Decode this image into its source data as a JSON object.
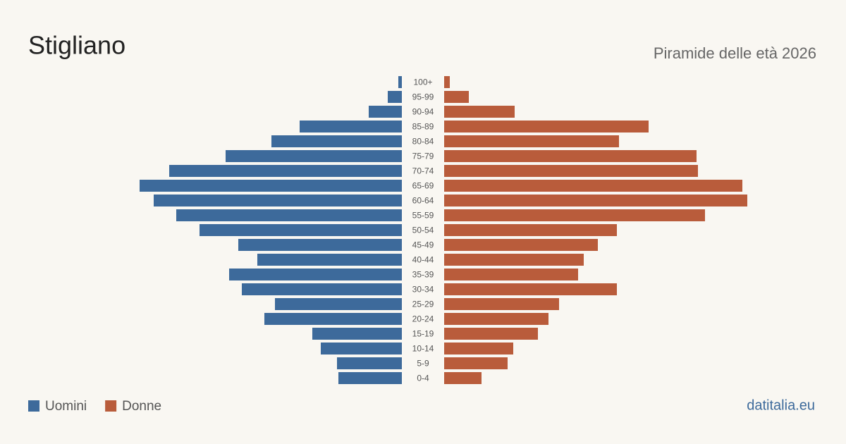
{
  "chart_data": {
    "type": "population-pyramid",
    "title": "Stigliano",
    "subtitle": "Piramide delle età 2026",
    "source": "datitalia.eu",
    "categories": [
      "100+",
      "95-99",
      "90-94",
      "85-89",
      "80-84",
      "75-79",
      "70-74",
      "65-69",
      "60-64",
      "55-59",
      "50-54",
      "45-49",
      "40-44",
      "35-39",
      "30-34",
      "25-29",
      "20-24",
      "15-19",
      "10-14",
      "5-9",
      "0-4"
    ],
    "series": [
      {
        "name": "Uomini",
        "color": "#3d6a9b",
        "values": [
          2.5,
          10,
          23.5,
          72.5,
          92.5,
          125,
          165,
          186,
          176,
          160,
          143.5,
          116,
          102.5,
          122.5,
          113.5,
          90,
          97.5,
          63.5,
          57.5,
          46,
          45
        ]
      },
      {
        "name": "Donne",
        "color": "#b95c3b",
        "values": [
          4,
          17.5,
          50,
          145,
          124,
          179,
          180,
          211.5,
          215,
          185,
          122.5,
          109,
          99,
          95,
          122.5,
          81.5,
          74,
          66.5,
          49,
          45,
          26.5
        ]
      }
    ]
  }
}
